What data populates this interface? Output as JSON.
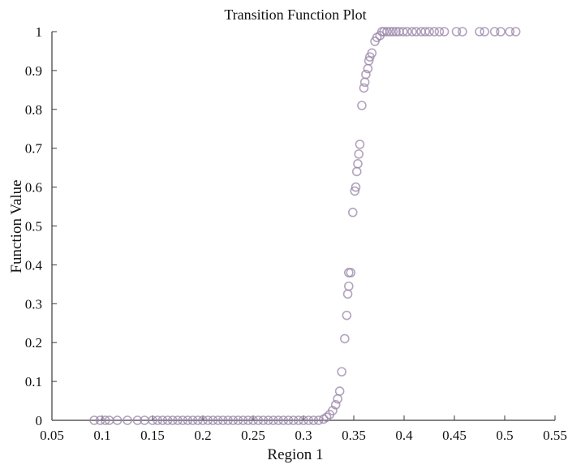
{
  "chart_data": {
    "type": "scatter",
    "title": "Transition Function Plot",
    "xlabel": "Region 1",
    "ylabel": "Function Value",
    "xlim": [
      0.05,
      0.55
    ],
    "ylim": [
      0,
      1
    ],
    "x_ticks": [
      "0.05",
      "0.1",
      "0.15",
      "0.2",
      "0.25",
      "0.3",
      "0.35",
      "0.4",
      "0.45",
      "0.5",
      "0.55"
    ],
    "y_ticks": [
      "0",
      "0.1",
      "0.2",
      "0.3",
      "0.4",
      "0.5",
      "0.6",
      "0.7",
      "0.8",
      "0.9",
      "1"
    ],
    "grid": false,
    "marker": "open-circle",
    "marker_color": "#9a86a8",
    "points": [
      {
        "x": 0.092,
        "y": 0.0
      },
      {
        "x": 0.098,
        "y": 0.0
      },
      {
        "x": 0.103,
        "y": 0.0
      },
      {
        "x": 0.107,
        "y": 0.0
      },
      {
        "x": 0.115,
        "y": 0.0
      },
      {
        "x": 0.125,
        "y": 0.0
      },
      {
        "x": 0.135,
        "y": 0.0
      },
      {
        "x": 0.142,
        "y": 0.0
      },
      {
        "x": 0.15,
        "y": 0.0
      },
      {
        "x": 0.155,
        "y": 0.0
      },
      {
        "x": 0.16,
        "y": 0.0
      },
      {
        "x": 0.165,
        "y": 0.0
      },
      {
        "x": 0.17,
        "y": 0.0
      },
      {
        "x": 0.175,
        "y": 0.0
      },
      {
        "x": 0.18,
        "y": 0.0
      },
      {
        "x": 0.185,
        "y": 0.0
      },
      {
        "x": 0.19,
        "y": 0.0
      },
      {
        "x": 0.195,
        "y": 0.0
      },
      {
        "x": 0.2,
        "y": 0.0
      },
      {
        "x": 0.205,
        "y": 0.0
      },
      {
        "x": 0.21,
        "y": 0.0
      },
      {
        "x": 0.215,
        "y": 0.0
      },
      {
        "x": 0.22,
        "y": 0.0
      },
      {
        "x": 0.225,
        "y": 0.0
      },
      {
        "x": 0.23,
        "y": 0.0
      },
      {
        "x": 0.235,
        "y": 0.0
      },
      {
        "x": 0.24,
        "y": 0.0
      },
      {
        "x": 0.245,
        "y": 0.0
      },
      {
        "x": 0.25,
        "y": 0.0
      },
      {
        "x": 0.255,
        "y": 0.0
      },
      {
        "x": 0.26,
        "y": 0.0
      },
      {
        "x": 0.265,
        "y": 0.0
      },
      {
        "x": 0.27,
        "y": 0.0
      },
      {
        "x": 0.275,
        "y": 0.0
      },
      {
        "x": 0.28,
        "y": 0.0
      },
      {
        "x": 0.285,
        "y": 0.0
      },
      {
        "x": 0.29,
        "y": 0.0
      },
      {
        "x": 0.295,
        "y": 0.0
      },
      {
        "x": 0.3,
        "y": 0.0
      },
      {
        "x": 0.305,
        "y": 0.0
      },
      {
        "x": 0.31,
        "y": 0.0
      },
      {
        "x": 0.315,
        "y": 0.0
      },
      {
        "x": 0.32,
        "y": 0.003
      },
      {
        "x": 0.323,
        "y": 0.008
      },
      {
        "x": 0.326,
        "y": 0.015
      },
      {
        "x": 0.329,
        "y": 0.025
      },
      {
        "x": 0.332,
        "y": 0.04
      },
      {
        "x": 0.334,
        "y": 0.055
      },
      {
        "x": 0.336,
        "y": 0.075
      },
      {
        "x": 0.338,
        "y": 0.125
      },
      {
        "x": 0.341,
        "y": 0.21
      },
      {
        "x": 0.343,
        "y": 0.27
      },
      {
        "x": 0.344,
        "y": 0.325
      },
      {
        "x": 0.345,
        "y": 0.345
      },
      {
        "x": 0.345,
        "y": 0.38
      },
      {
        "x": 0.347,
        "y": 0.38
      },
      {
        "x": 0.349,
        "y": 0.535
      },
      {
        "x": 0.351,
        "y": 0.59
      },
      {
        "x": 0.352,
        "y": 0.6
      },
      {
        "x": 0.353,
        "y": 0.64
      },
      {
        "x": 0.354,
        "y": 0.66
      },
      {
        "x": 0.355,
        "y": 0.685
      },
      {
        "x": 0.356,
        "y": 0.71
      },
      {
        "x": 0.358,
        "y": 0.81
      },
      {
        "x": 0.36,
        "y": 0.855
      },
      {
        "x": 0.361,
        "y": 0.87
      },
      {
        "x": 0.362,
        "y": 0.89
      },
      {
        "x": 0.364,
        "y": 0.905
      },
      {
        "x": 0.365,
        "y": 0.925
      },
      {
        "x": 0.366,
        "y": 0.935
      },
      {
        "x": 0.368,
        "y": 0.945
      },
      {
        "x": 0.371,
        "y": 0.975
      },
      {
        "x": 0.373,
        "y": 0.985
      },
      {
        "x": 0.376,
        "y": 0.99
      },
      {
        "x": 0.378,
        "y": 1.0
      },
      {
        "x": 0.38,
        "y": 1.0
      },
      {
        "x": 0.383,
        "y": 1.0
      },
      {
        "x": 0.386,
        "y": 1.0
      },
      {
        "x": 0.389,
        "y": 1.0
      },
      {
        "x": 0.392,
        "y": 1.0
      },
      {
        "x": 0.395,
        "y": 1.0
      },
      {
        "x": 0.399,
        "y": 1.0
      },
      {
        "x": 0.403,
        "y": 1.0
      },
      {
        "x": 0.408,
        "y": 1.0
      },
      {
        "x": 0.412,
        "y": 1.0
      },
      {
        "x": 0.417,
        "y": 1.0
      },
      {
        "x": 0.421,
        "y": 1.0
      },
      {
        "x": 0.425,
        "y": 1.0
      },
      {
        "x": 0.43,
        "y": 1.0
      },
      {
        "x": 0.435,
        "y": 1.0
      },
      {
        "x": 0.44,
        "y": 1.0
      },
      {
        "x": 0.452,
        "y": 1.0
      },
      {
        "x": 0.458,
        "y": 1.0
      },
      {
        "x": 0.475,
        "y": 1.0
      },
      {
        "x": 0.48,
        "y": 1.0
      },
      {
        "x": 0.49,
        "y": 1.0
      },
      {
        "x": 0.496,
        "y": 1.0
      },
      {
        "x": 0.505,
        "y": 1.0
      },
      {
        "x": 0.511,
        "y": 1.0
      }
    ]
  }
}
